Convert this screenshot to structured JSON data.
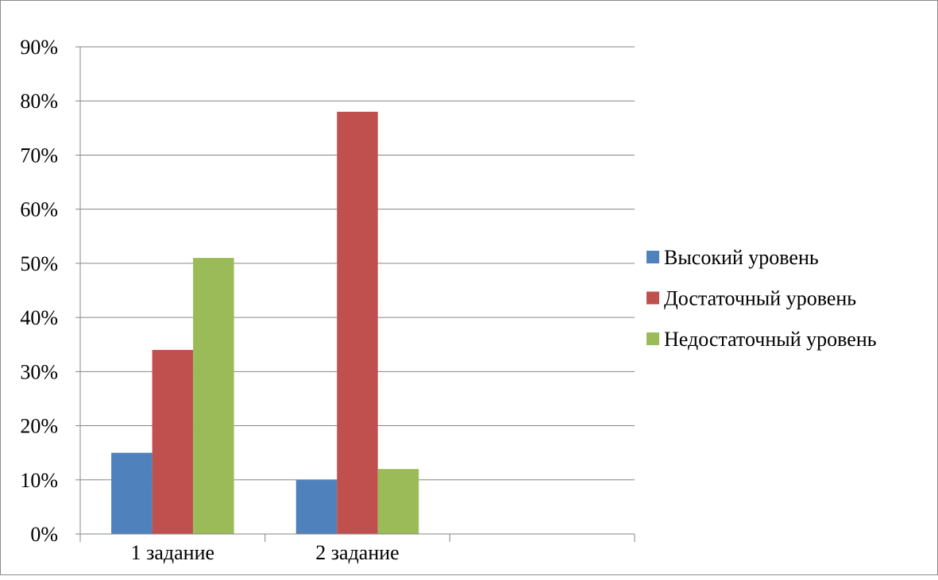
{
  "chart_data": {
    "type": "bar",
    "title": "",
    "xlabel": "",
    "ylabel": "",
    "categories": [
      "1 задание",
      "2 задание",
      ""
    ],
    "series": [
      {
        "name": "Высокий уровень",
        "color": "#4F81BD",
        "values": [
          15,
          10,
          null
        ]
      },
      {
        "name": "Достаточный уровень",
        "color": "#C0504D",
        "values": [
          34,
          78,
          null
        ]
      },
      {
        "name": "Недостаточный уровень",
        "color": "#9BBB59",
        "values": [
          51,
          12,
          null
        ]
      }
    ],
    "ylim": [
      0,
      90
    ],
    "yticks": [
      "0%",
      "10%",
      "20%",
      "30%",
      "40%",
      "50%",
      "60%",
      "70%",
      "80%",
      "90%"
    ],
    "grid": true,
    "legend_position": "right"
  }
}
